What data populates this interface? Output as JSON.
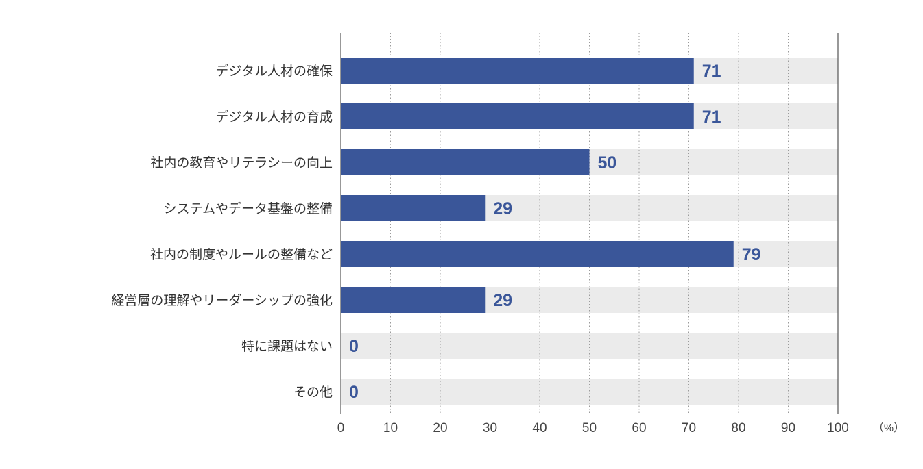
{
  "chart_data": {
    "type": "bar",
    "orientation": "horizontal",
    "categories": [
      "デジタル人材の確保",
      "デジタル人材の育成",
      "社内の教育やリテラシーの向上",
      "システムやデータ基盤の整備",
      "社内の制度やルールの整備など",
      "経営層の理解やリーダーシップの強化",
      "特に課題はない",
      "その他"
    ],
    "values": [
      71,
      71,
      50,
      29,
      79,
      29,
      0,
      0
    ],
    "value_labels": [
      "71",
      "71",
      "50",
      "29",
      "79",
      "29",
      "0",
      "0"
    ],
    "xlim": [
      0,
      100
    ],
    "xticks": [
      0,
      10,
      20,
      30,
      40,
      50,
      60,
      70,
      80,
      90,
      100
    ],
    "xtick_labels": [
      "0",
      "10",
      "20",
      "30",
      "40",
      "50",
      "60",
      "70",
      "80",
      "90",
      "100"
    ],
    "unit_label": "（%）",
    "grid": "vertical dotted",
    "colors": {
      "bar": "#3a5699",
      "track": "#ebebeb",
      "value_text": "#3a5699",
      "grid": "#9a9a9a",
      "axis": "#555555"
    }
  }
}
